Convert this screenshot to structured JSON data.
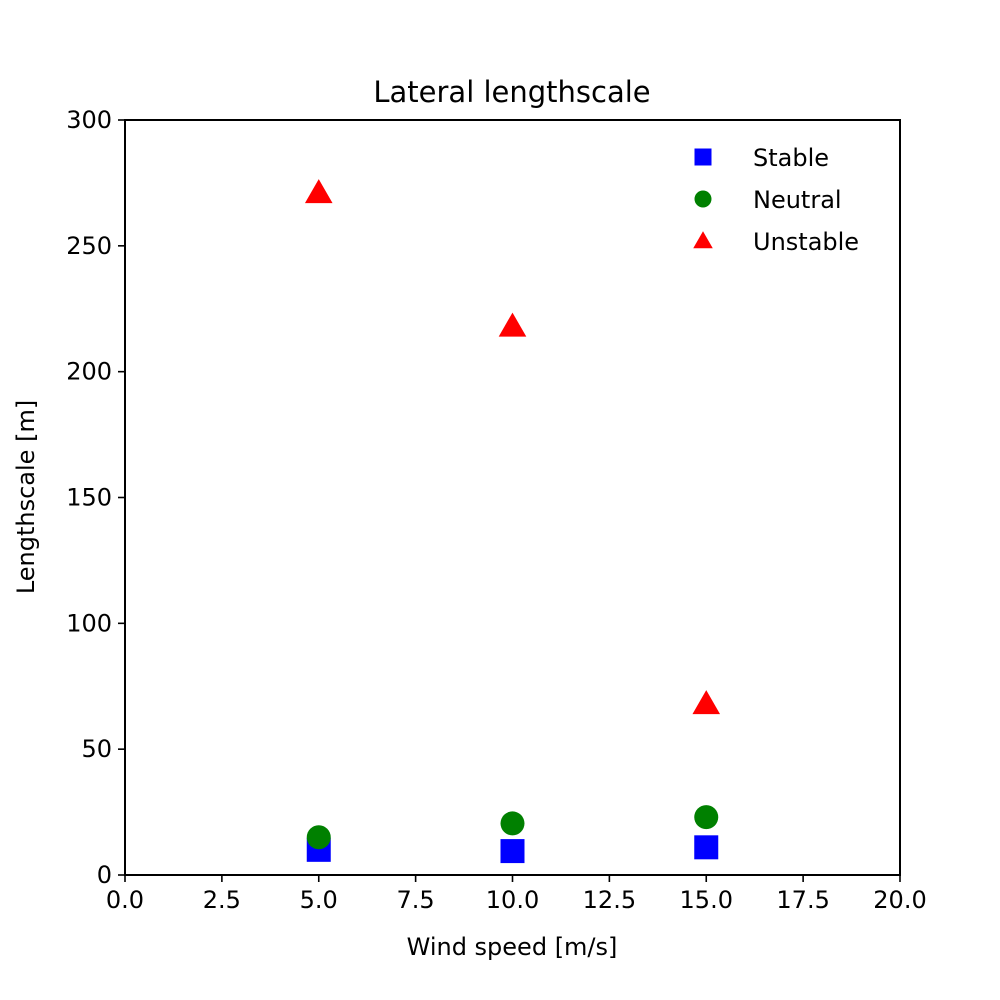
{
  "chart_data": {
    "type": "scatter",
    "title": "Lateral lengthscale",
    "xlabel": "Wind speed [m/s]",
    "ylabel": "Lengthscale [m]",
    "xlim": [
      0,
      20
    ],
    "ylim": [
      0,
      300
    ],
    "xticks": [
      "0.0",
      "2.5",
      "5.0",
      "7.5",
      "10.0",
      "12.5",
      "15.0",
      "17.5",
      "20.0"
    ],
    "yticks": [
      "0",
      "50",
      "100",
      "150",
      "200",
      "250",
      "300"
    ],
    "grid": false,
    "legend_position": "top-right",
    "series": [
      {
        "name": "Stable",
        "marker": "square",
        "color": "#0000ff",
        "x": [
          5,
          10,
          15
        ],
        "y": [
          10,
          9.5,
          11
        ]
      },
      {
        "name": "Neutral",
        "marker": "circle",
        "color": "#008000",
        "x": [
          5,
          10,
          15
        ],
        "y": [
          15,
          20.5,
          23
        ]
      },
      {
        "name": "Unstable",
        "marker": "triangle",
        "color": "#ff0000",
        "x": [
          5,
          10,
          15
        ],
        "y": [
          271,
          218,
          68
        ]
      }
    ]
  }
}
